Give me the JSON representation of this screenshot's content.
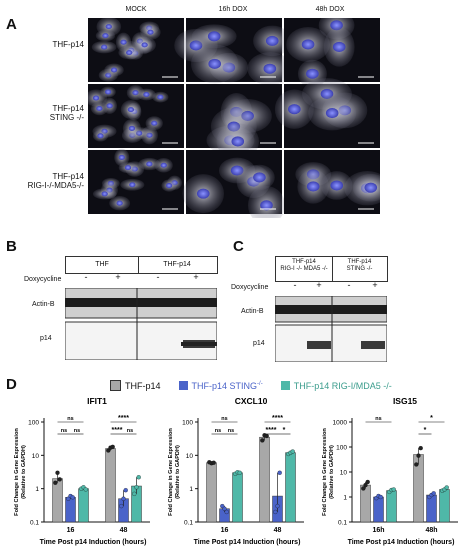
{
  "panels": {
    "A": "A",
    "B": "B",
    "C": "C",
    "D": "D"
  },
  "panelA": {
    "columns": [
      "MOCK",
      "16h DOX",
      "48h DOX"
    ],
    "rows": [
      {
        "line1": "THF-p14",
        "line2": ""
      },
      {
        "line1": "THF-p14",
        "line2": "STING -/-"
      },
      {
        "line1": "THF-p14",
        "line2": "RIG-I-/-MDA5-/-"
      }
    ]
  },
  "panelB": {
    "groups": [
      "THF",
      "THF-p14"
    ],
    "row_label": "Doxycycline",
    "lanes": [
      "-",
      "+",
      "-",
      "+"
    ],
    "bands": [
      "Actin-B",
      "p14"
    ]
  },
  "panelC": {
    "group1_line1": "THF-p14",
    "group1_line2": "RIG-I -/- MDA5 -/-",
    "group2_line1": "THF-p14",
    "group2_line2": "STING -/-",
    "row_label": "Doxycycline",
    "lanes": [
      "-",
      "+",
      "-",
      "+"
    ],
    "bands": [
      "Actin-B",
      "p14"
    ]
  },
  "legend": [
    {
      "label": "THF-p14",
      "color": "#a8a8a8"
    },
    {
      "label": "THF-p14 STING",
      "sup": "-/-",
      "color": "#4a63c9"
    },
    {
      "label": "THF-p14 RIG-I/MDA5 -/-",
      "color": "#4fb8a8"
    }
  ],
  "chart_data": [
    {
      "type": "bar",
      "title": "IFIT1",
      "log": true,
      "ylabel": "Fold Change in Gene Expression (Relative to GAPDH)",
      "xlabel": "Time Post p14 Induction (hours)",
      "yticks": [
        "0.1",
        "1",
        "10",
        "100"
      ],
      "ylim": [
        0.1,
        100
      ],
      "categories": [
        "16",
        "48"
      ],
      "series": [
        {
          "color": "#a8a8a8",
          "values": [
            2.0,
            16.0
          ],
          "points": [
            [
              1.5,
              3.0,
              1.9
            ],
            [
              14,
              17,
              18
            ]
          ]
        },
        {
          "color": "#4a63c9",
          "values": [
            0.55,
            0.5
          ],
          "points": [
            [
              0.5,
              0.6,
              0.55
            ],
            [
              0.3,
              0.5,
              0.9
            ]
          ]
        },
        {
          "color": "#4fb8a8",
          "values": [
            1.0,
            1.2
          ],
          "points": [
            [
              1.0,
              1.1,
              0.95
            ],
            [
              0.7,
              1.1,
              2.2
            ]
          ]
        }
      ],
      "sig": [
        {
          "text": "ns",
          "g": 0,
          "from": 0,
          "to": 1,
          "level": 0
        },
        {
          "text": "ns",
          "g": 0,
          "from": 1,
          "to": 2,
          "level": 0
        },
        {
          "text": "ns",
          "g": 0,
          "from": 0,
          "to": 2,
          "level": 1
        },
        {
          "text": "****",
          "g": 1,
          "from": 0,
          "to": 1,
          "level": 0
        },
        {
          "text": "ns",
          "g": 1,
          "from": 1,
          "to": 2,
          "level": 0
        },
        {
          "text": "****",
          "g": 1,
          "from": 0,
          "to": 2,
          "level": 1
        }
      ]
    },
    {
      "type": "bar",
      "title": "CXCL10",
      "log": true,
      "ylabel": "Fold Change in Gene Expression (Relative to GAPDH)",
      "xlabel": "Time Post p14 Induction (hours)",
      "yticks": [
        "0.1",
        "1",
        "10",
        "100"
      ],
      "ylim": [
        0.1,
        100
      ],
      "categories": [
        "16",
        "48"
      ],
      "series": [
        {
          "color": "#a8a8a8",
          "values": [
            6.0,
            35.0
          ],
          "points": [
            [
              6.2,
              5.8,
              6.0
            ],
            [
              28,
              40,
              38
            ]
          ]
        },
        {
          "color": "#4a63c9",
          "values": [
            0.25,
            0.6
          ],
          "points": [
            [
              0.3,
              0.25,
              0.2
            ],
            [
              0.2,
              0.3,
              3.0
            ]
          ]
        },
        {
          "color": "#4fb8a8",
          "values": [
            3.0,
            12.0
          ],
          "points": [
            [
              2.8,
              3.1,
              3.0
            ],
            [
              11,
              12,
              13
            ]
          ]
        }
      ],
      "sig": [
        {
          "text": "ns",
          "g": 0,
          "from": 0,
          "to": 1,
          "level": 0
        },
        {
          "text": "ns",
          "g": 0,
          "from": 1,
          "to": 2,
          "level": 0
        },
        {
          "text": "ns",
          "g": 0,
          "from": 0,
          "to": 2,
          "level": 1
        },
        {
          "text": "****",
          "g": 1,
          "from": 0,
          "to": 1,
          "level": 0
        },
        {
          "text": "*",
          "g": 1,
          "from": 1,
          "to": 2,
          "level": 0
        },
        {
          "text": "****",
          "g": 1,
          "from": 0,
          "to": 2,
          "level": 1
        }
      ]
    },
    {
      "type": "bar",
      "title": "ISG15",
      "log": true,
      "ylabel": "Fold Change in Gene Expression (Relative to GAPDH)",
      "xlabel": "Time Post p14 Induction (hours)",
      "yticks": [
        "0.1",
        "1",
        "10",
        "100",
        "1000"
      ],
      "ylim": [
        0.1,
        1000
      ],
      "categories": [
        "16h",
        "48h"
      ],
      "series": [
        {
          "color": "#a8a8a8",
          "values": [
            3.0,
            50.0
          ],
          "points": [
            [
              2.2,
              3.0,
              4.0
            ],
            [
              20,
              45,
              90
            ]
          ]
        },
        {
          "color": "#4a63c9",
          "values": [
            1.0,
            1.2
          ],
          "points": [
            [
              0.9,
              1.1,
              1.0
            ],
            [
              1.0,
              1.2,
              1.4
            ]
          ]
        },
        {
          "color": "#4fb8a8",
          "values": [
            1.8,
            2.0
          ],
          "points": [
            [
              1.6,
              1.9,
              2.0
            ],
            [
              1.8,
              2.0,
              2.4
            ]
          ]
        }
      ],
      "sig": [
        {
          "text": "ns",
          "g": 0,
          "from": 0,
          "to": 2,
          "level": 1
        },
        {
          "text": "*",
          "g": 1,
          "from": 0,
          "to": 1,
          "level": 0
        },
        {
          "text": "*",
          "g": 1,
          "from": 0,
          "to": 2,
          "level": 1
        }
      ]
    }
  ]
}
